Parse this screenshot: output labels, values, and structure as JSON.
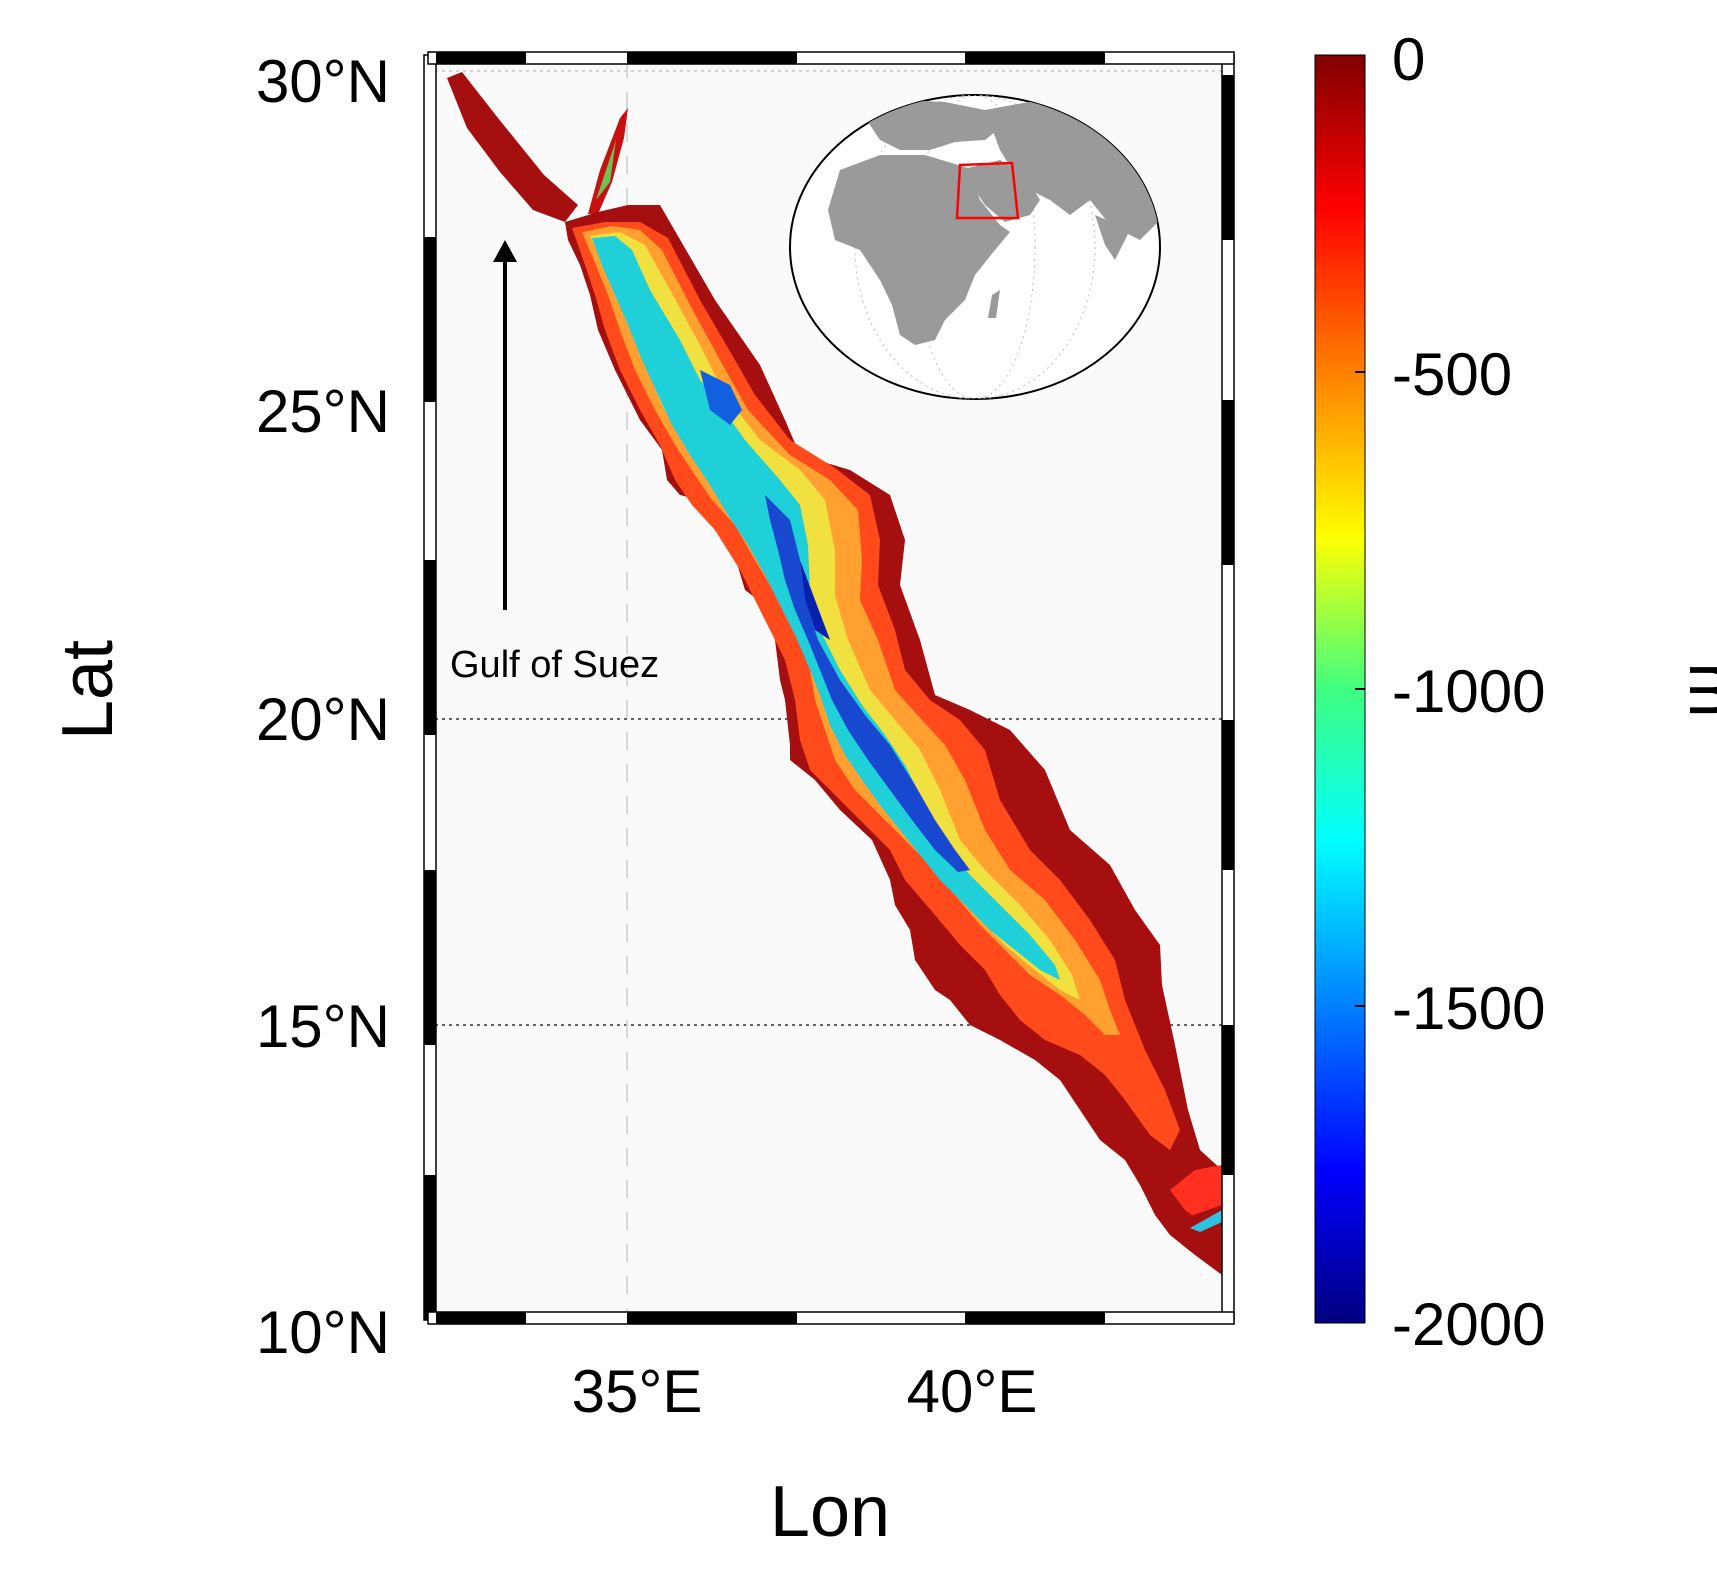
{
  "map": {
    "xlabel": "Lon",
    "ylabel": "Lat",
    "lon_range": [
      32,
      44
    ],
    "lat_range": [
      10,
      30
    ],
    "lat_ticks": [
      {
        "value": 30,
        "label": "30°N"
      },
      {
        "value": 25,
        "label": "25°N"
      },
      {
        "value": 20,
        "label": "20°N"
      },
      {
        "value": 15,
        "label": "15°N"
      },
      {
        "value": 10,
        "label": "10°N"
      }
    ],
    "lon_ticks": [
      {
        "value": 35,
        "label": "35°E"
      },
      {
        "value": 40,
        "label": "40°E"
      }
    ],
    "annotation": "Gulf of Suez",
    "frame_style": "black-white alternating",
    "gridlines": "dotted"
  },
  "colorbar": {
    "label": "m",
    "range": [
      -2000,
      0
    ],
    "ticks": [
      {
        "value": 0,
        "label": "0"
      },
      {
        "value": -500,
        "label": "-500"
      },
      {
        "value": -1000,
        "label": "-1000"
      },
      {
        "value": -1500,
        "label": "-1500"
      },
      {
        "value": -2000,
        "label": "-2000"
      }
    ],
    "colormap": "jet",
    "colors": [
      "#800000",
      "#ff0000",
      "#ff8000",
      "#ffff00",
      "#80ff80",
      "#00ffff",
      "#0080ff",
      "#0000ff",
      "#000080"
    ]
  },
  "inset": {
    "type": "globe locator",
    "land_color": "#9a9a9a",
    "highlight_color": "#ff0000"
  },
  "colors": {
    "shelf": "#a50f0f",
    "shallow": "#ff3a1a",
    "mid": "#ffb030",
    "slope": "#e8e838",
    "deep": "#18c8d8",
    "trough": "#1040d8"
  }
}
